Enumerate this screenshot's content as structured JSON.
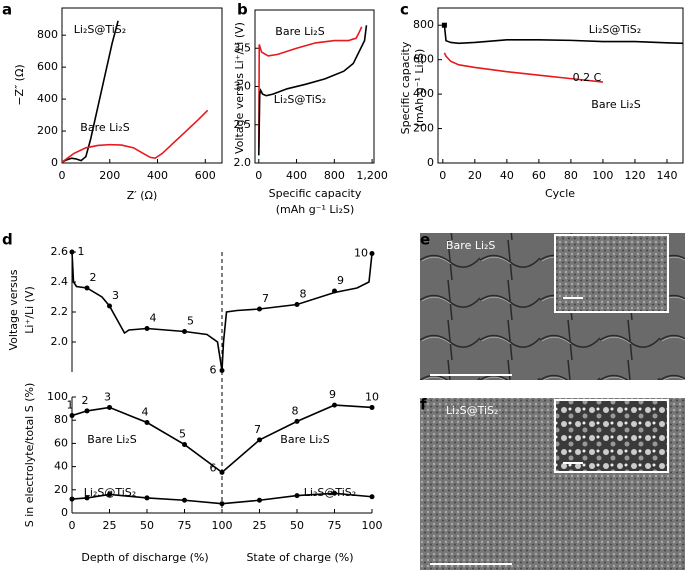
{
  "panels": [
    "a",
    "b",
    "c",
    "d",
    "e",
    "f"
  ],
  "chart_data": [
    {
      "type": "line",
      "xlabel": [
        "Z′ (Ω)"
      ],
      "ylabel": [
        "−Z″ (Ω)"
      ],
      "xlim": [
        0,
        670
      ],
      "ylim": [
        0,
        970
      ],
      "xticks": [
        0,
        200,
        400,
        600
      ],
      "yticks": [
        0,
        200,
        400,
        600,
        800
      ],
      "series": [
        {
          "name": "Li₂S@TiS₂",
          "color": "#000000",
          "x": [
            0,
            20,
            40,
            60,
            80,
            100,
            120,
            150,
            180,
            210,
            235
          ],
          "values": [
            5,
            20,
            30,
            25,
            15,
            40,
            150,
            350,
            550,
            750,
            890
          ]
        },
        {
          "name": "Bare Li₂S",
          "color": "#e8191c",
          "x": [
            0,
            50,
            100,
            150,
            200,
            250,
            300,
            340,
            370,
            390,
            420,
            470,
            520,
            570,
            610
          ],
          "values": [
            5,
            60,
            95,
            110,
            115,
            112,
            95,
            60,
            35,
            30,
            60,
            130,
            200,
            270,
            330
          ]
        }
      ]
    },
    {
      "type": "line",
      "xlabel": [
        "Specific capacity",
        "(mAh g⁻¹ Li₂S)"
      ],
      "ylabel": [
        "Voltage versus Li⁺/Li (V)"
      ],
      "xlim": [
        -40,
        1220
      ],
      "ylim": [
        2.0,
        4.0
      ],
      "xticks": [
        0,
        400,
        800,
        {
          "value": 1200,
          "label": "1,200"
        }
      ],
      "yticks": [
        {
          "value": 2,
          "label": "2.0"
        },
        2.5,
        {
          "value": 3,
          "label": "3.0"
        },
        3.5
      ],
      "series": [
        {
          "name": "Bare Li₂S",
          "color": "#e8191c",
          "x": [
            0,
            5,
            30,
            100,
            200,
            400,
            600,
            800,
            950,
            1000,
            1030,
            1060,
            1090
          ],
          "values": [
            2.2,
            3.55,
            3.45,
            3.4,
            3.42,
            3.5,
            3.57,
            3.6,
            3.6,
            3.62,
            3.63,
            3.7,
            3.78
          ]
        },
        {
          "name": "Li₂S@TiS₂",
          "color": "#000000",
          "x": [
            0,
            10,
            20,
            40,
            80,
            150,
            300,
            500,
            700,
            900,
            1000,
            1080,
            1120,
            1140
          ],
          "values": [
            2.1,
            2.9,
            2.95,
            2.9,
            2.88,
            2.9,
            2.97,
            3.03,
            3.1,
            3.2,
            3.3,
            3.5,
            3.6,
            3.8
          ]
        }
      ]
    },
    {
      "type": "line",
      "xlabel": [
        "Cycle"
      ],
      "ylabel": [
        "Specific capacity",
        "(mAh g⁻¹ Li₂S)"
      ],
      "xlim": [
        -3,
        150
      ],
      "ylim": [
        0,
        900
      ],
      "xticks": [
        0,
        20,
        40,
        60,
        80,
        100,
        120,
        140
      ],
      "yticks": [
        0,
        200,
        400,
        600,
        800
      ],
      "annotations": [
        "0.2 C"
      ],
      "series": [
        {
          "name": "Li₂S@TiS₂",
          "color": "#000000",
          "x": [
            1,
            2,
            5,
            10,
            20,
            40,
            60,
            80,
            100,
            120,
            140,
            150
          ],
          "values": [
            800,
            710,
            700,
            695,
            700,
            715,
            715,
            712,
            705,
            705,
            698,
            695
          ]
        },
        {
          "name": "Bare Li₂S",
          "color": "#e8191c",
          "x": [
            1,
            2,
            5,
            10,
            20,
            40,
            60,
            80,
            100
          ],
          "values": [
            640,
            620,
            590,
            570,
            555,
            530,
            510,
            490,
            470
          ]
        }
      ]
    },
    {
      "type": "profile",
      "ylabel": [
        "Voltage versus",
        "Li⁺/Li (V)"
      ],
      "xlim": [
        0,
        200
      ],
      "ylim": [
        1.8,
        2.6
      ],
      "yticks": [
        {
          "value": 2,
          "label": "2.0"
        },
        2.2,
        2.4,
        2.6
      ],
      "series": [
        {
          "color": "#000000",
          "x": [
            0,
            1,
            3,
            10,
            20,
            25,
            30,
            35,
            38,
            50,
            75,
            90,
            97,
            100,
            101,
            103,
            110,
            125,
            150,
            175,
            190,
            198,
            200
          ],
          "values": [
            2.6,
            2.4,
            2.37,
            2.36,
            2.3,
            2.24,
            2.15,
            2.06,
            2.08,
            2.09,
            2.07,
            2.05,
            2.0,
            1.81,
            2.0,
            2.2,
            2.21,
            2.22,
            2.25,
            2.33,
            2.36,
            2.4,
            2.59
          ]
        }
      ],
      "points": {
        "x": [
          0,
          10,
          25,
          50,
          75,
          100,
          125,
          150,
          175,
          200
        ],
        "values": [
          2.6,
          2.36,
          2.24,
          2.09,
          2.07,
          1.81,
          2.22,
          2.25,
          2.34,
          2.59
        ],
        "labels": [
          "1",
          "2",
          "3",
          "4",
          "5",
          "6",
          "7",
          "8",
          "9",
          "10"
        ]
      }
    },
    {
      "type": "markers",
      "xlabel": [
        "Depth of discharge (%)",
        "State of charge (%)"
      ],
      "ylabel": [
        "S in electrolyte/total S (%)"
      ],
      "xlim": [
        0,
        200
      ],
      "ylim": [
        0,
        100
      ],
      "yticks": [
        0,
        20,
        40,
        60,
        80,
        100
      ],
      "vline": 100,
      "xticks": [
        0,
        25,
        50,
        75,
        100,
        {
          "value": 125,
          "label": "25"
        },
        {
          "value": 150,
          "label": "50"
        },
        {
          "value": 175,
          "label": "75"
        },
        {
          "value": 200,
          "label": "100"
        }
      ],
      "annotations": [
        "Bare Li₂S",
        "Li₂S@TiS₂"
      ],
      "series": [
        {
          "name": "Bare Li₂S",
          "color": "#000000",
          "x": [
            0,
            10,
            25,
            50,
            75,
            100,
            125,
            150,
            175,
            200
          ],
          "values": [
            84,
            88,
            91,
            78,
            59,
            35,
            63,
            79,
            93,
            91
          ],
          "point_labels": [
            "1",
            "2",
            "3",
            "4",
            "5",
            "6",
            "7",
            "8",
            "9",
            "10"
          ]
        },
        {
          "name": "Li₂S@TiS₂",
          "color": "#000000",
          "x": [
            0,
            10,
            25,
            50,
            75,
            100,
            125,
            150,
            175,
            200
          ],
          "values": [
            12,
            13,
            16,
            13,
            11,
            8,
            11,
            15,
            17,
            14
          ]
        }
      ]
    }
  ],
  "images": [
    {
      "label": "Bare Li₂S"
    },
    {
      "label": "Li₂S@TiS₂"
    }
  ]
}
